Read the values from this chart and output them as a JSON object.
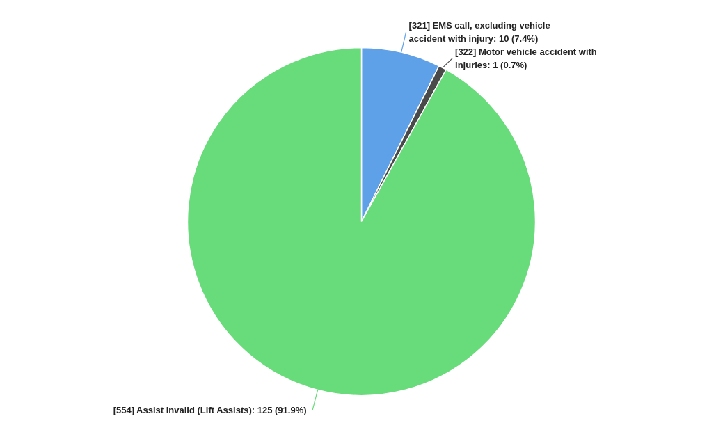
{
  "chart_data": {
    "type": "pie",
    "categories": [
      "[321] EMS call, excluding vehicle accident with injury",
      "[322] Motor vehicle accident with injuries",
      "[554] Assist invalid  (Lift Assists)"
    ],
    "values": [
      10,
      1,
      125
    ],
    "colors": [
      "#5ea1e8",
      "#4a4a4a",
      "#68dc7a"
    ],
    "value_labels": [
      "10 (7.4%)",
      "1 (0.7%)",
      "125 (91.9%)"
    ]
  }
}
